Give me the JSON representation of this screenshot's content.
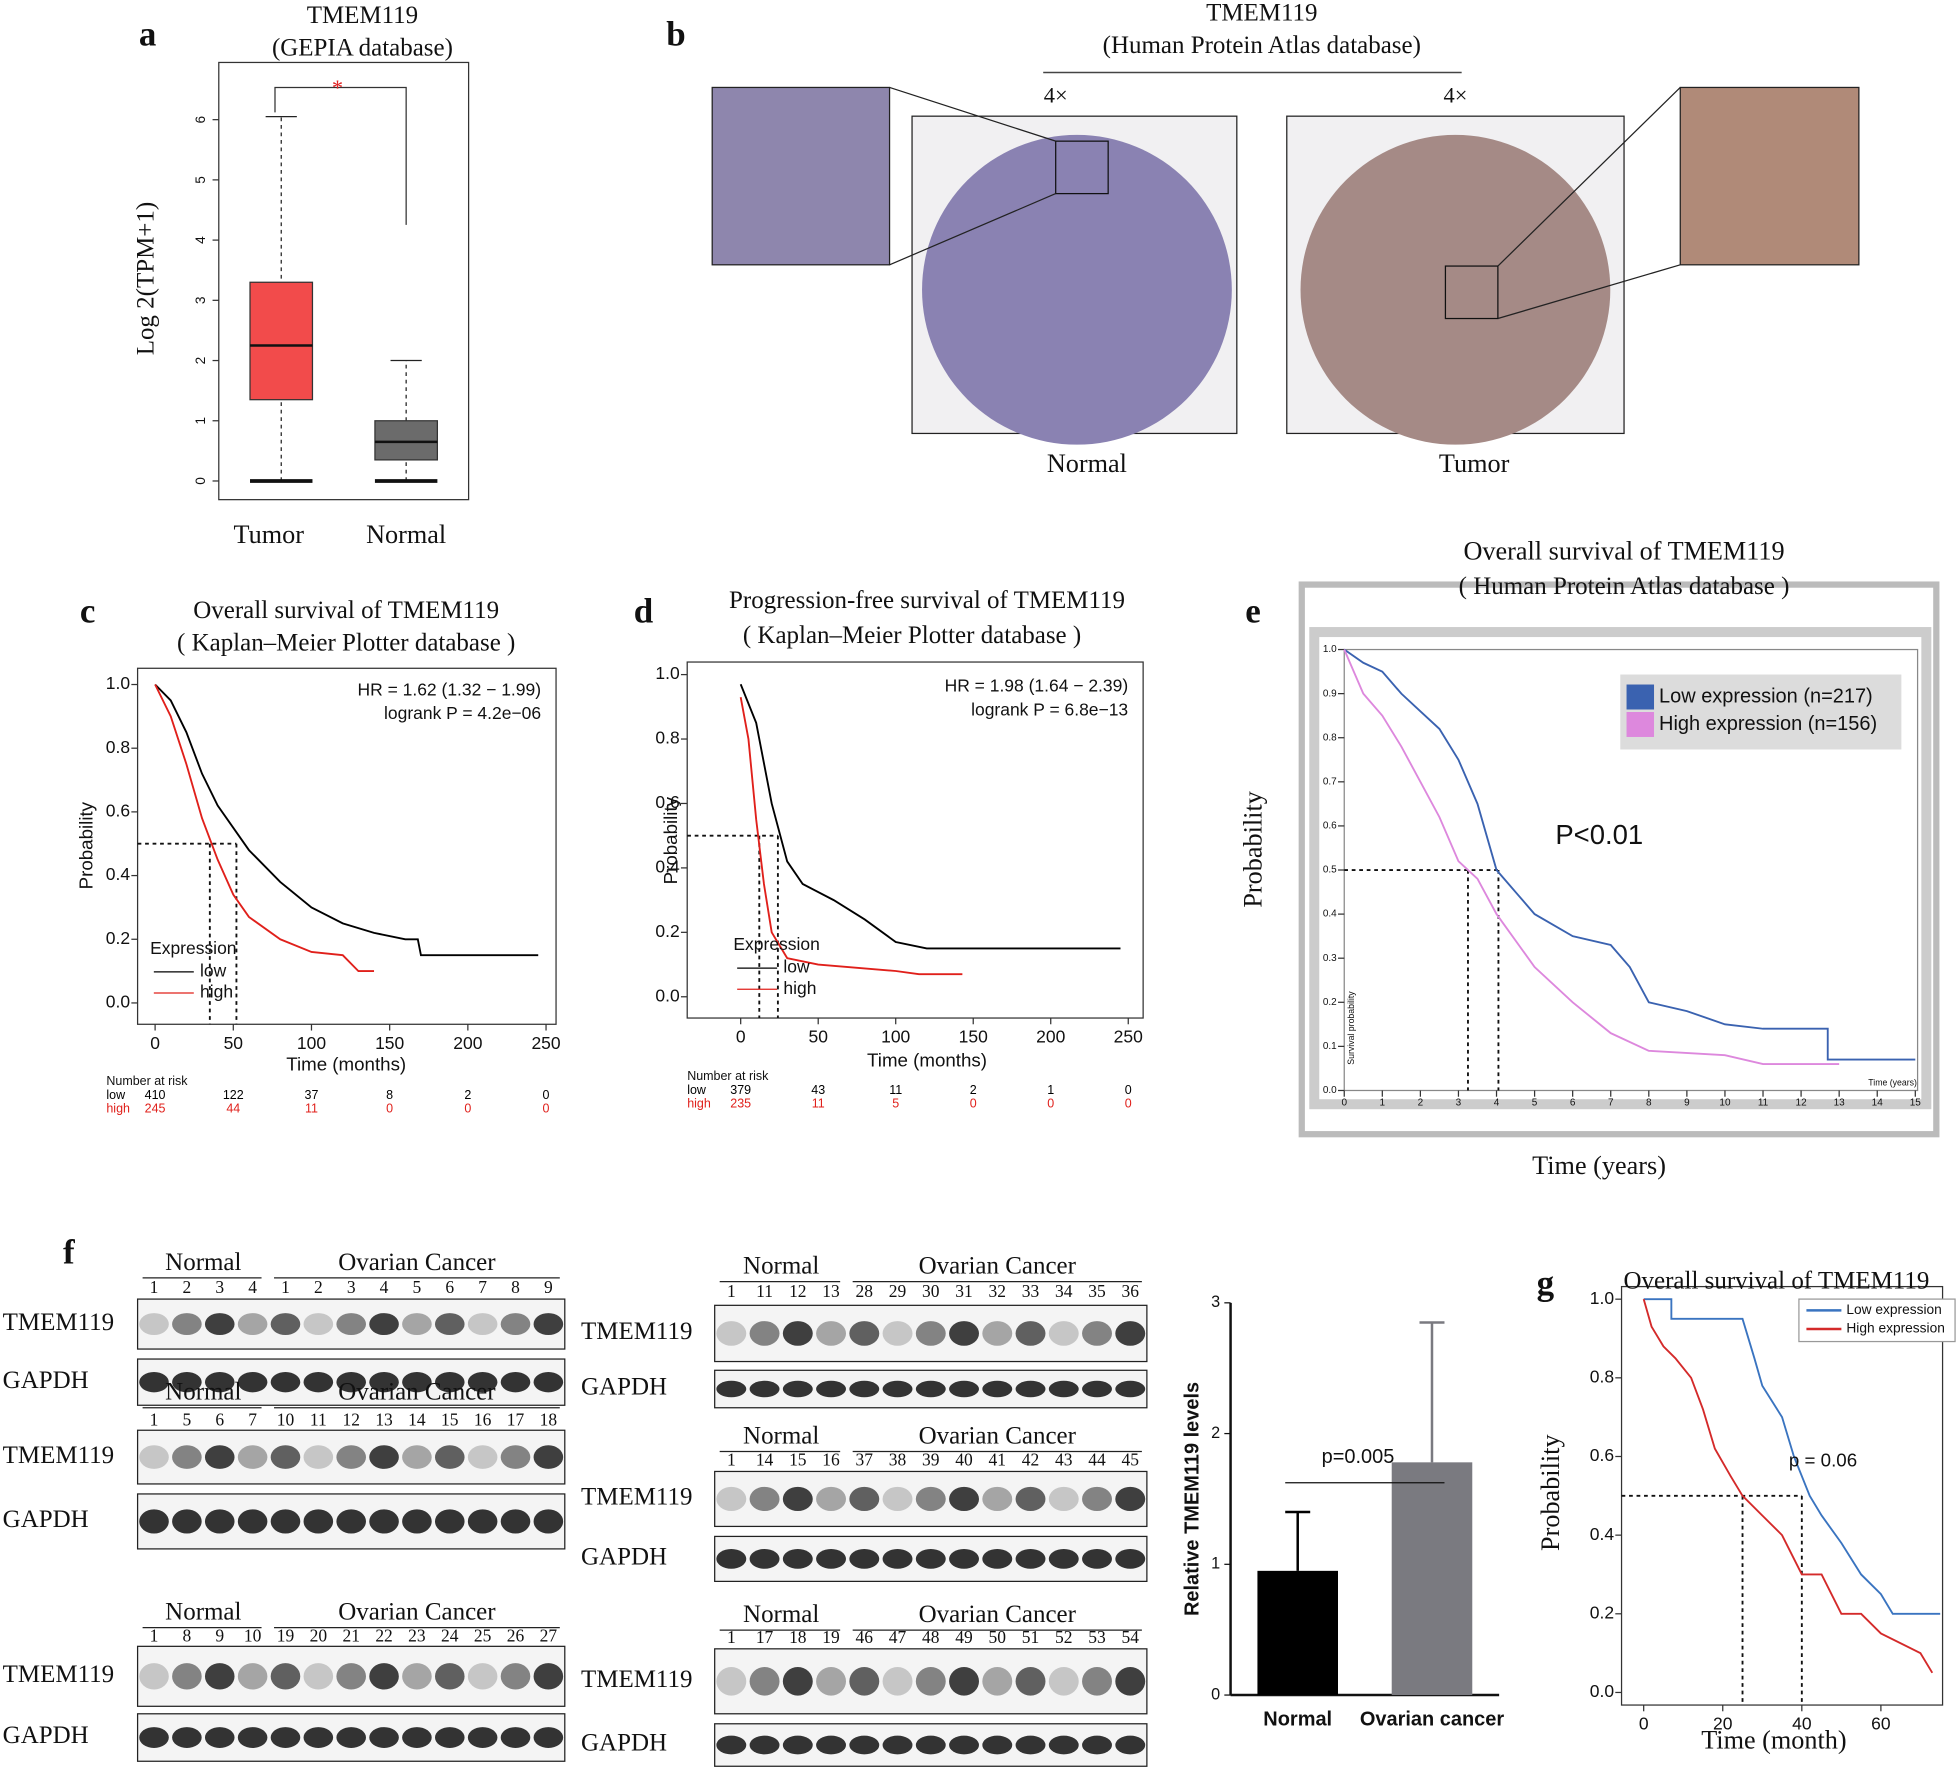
{
  "panel_labels": [
    "a",
    "b",
    "c",
    "d",
    "e",
    "f",
    "g"
  ],
  "chart_data": [
    {
      "type": "box",
      "title": "TMEM119",
      "subtitle": "(GEPIA database)",
      "ylabel": "Log 2(TPM+1)",
      "categories": [
        "Tumor",
        "Normal"
      ],
      "colors": [
        "#f24b4b",
        "#6b6b6b"
      ],
      "whisker_low": [
        0,
        0
      ],
      "q1": [
        1.35,
        0.35
      ],
      "median": [
        2.25,
        0.65
      ],
      "q3": [
        3.3,
        1.0
      ],
      "whisker_high": [
        6.05,
        2.0
      ],
      "ylim": [
        -0.31,
        6.95
      ],
      "yticks": [
        0,
        1,
        2,
        3,
        4,
        5,
        6
      ],
      "significance": "*"
    },
    {
      "type": "line",
      "title": "Overall survival of  TMEM119",
      "subtitle": "( Kaplan–Meier Plotter database )",
      "xlabel": "Time (months)",
      "ylabel": "Probability",
      "xlim": [
        -11.2,
        256.4
      ],
      "ylim": [
        -0.067,
        1.051
      ],
      "xticks": [
        0,
        50,
        100,
        150,
        200,
        250
      ],
      "yticks": [
        {
          "value": 0,
          "label": "0.0"
        },
        {
          "value": 0.2,
          "label": "0.2"
        },
        {
          "value": 0.4,
          "label": "0.4"
        },
        {
          "value": 0.6,
          "label": "0.6"
        },
        {
          "value": 0.8,
          "label": "0.8"
        },
        {
          "value": 1,
          "label": "1.0"
        }
      ],
      "legend_title": "Expression",
      "series": [
        {
          "name": "low",
          "color": "#000000",
          "x": [
            0,
            10,
            20,
            30,
            40,
            50,
            60,
            80,
            100,
            120,
            140,
            160,
            168,
            170,
            245
          ],
          "values": [
            1,
            0.95,
            0.85,
            0.72,
            0.62,
            0.55,
            0.48,
            0.38,
            0.3,
            0.25,
            0.22,
            0.2,
            0.2,
            0.15,
            0.15
          ]
        },
        {
          "name": "high",
          "color": "#e0201b",
          "x": [
            0,
            10,
            20,
            30,
            40,
            50,
            60,
            80,
            100,
            120,
            130,
            140
          ],
          "values": [
            1,
            0.9,
            0.75,
            0.58,
            0.45,
            0.34,
            0.27,
            0.2,
            0.16,
            0.15,
            0.1,
            0.1
          ]
        }
      ],
      "median_level": 0.5,
      "medians": [
        35,
        52
      ],
      "annotations": [
        "HR = 1.62 (1.32 − 1.99)",
        "logrank P = 4.2e−06"
      ],
      "risk_table": {
        "title": "Number at risk",
        "rows": [
          {
            "name": "low",
            "values": [
              410,
              122,
              37,
              8,
              2,
              0
            ]
          },
          {
            "name": "high",
            "values": [
              245,
              44,
              11,
              0,
              0,
              0
            ]
          }
        ]
      }
    },
    {
      "type": "line",
      "title": "Progression-free survival of  TMEM119",
      "subtitle": "( Kaplan–Meier Plotter database )",
      "xlabel": "Time (months)",
      "ylabel": "Probability",
      "xlim": [
        -34.5,
        259.6
      ],
      "ylim": [
        -0.066,
        1.039
      ],
      "xticks": [
        0,
        50,
        100,
        150,
        200,
        250
      ],
      "yticks": [
        {
          "value": 0,
          "label": "0.0"
        },
        {
          "value": 0.2,
          "label": "0.2"
        },
        {
          "value": 0.4,
          "label": "0.4"
        },
        {
          "value": 0.6,
          "label": "0.6"
        },
        {
          "value": 0.8,
          "label": "0.8"
        },
        {
          "value": 1,
          "label": "1.0"
        }
      ],
      "legend_title": "Expression",
      "series": [
        {
          "name": "low",
          "color": "#000000",
          "x": [
            0,
            10,
            20,
            30,
            40,
            60,
            80,
            100,
            120,
            245
          ],
          "values": [
            0.97,
            0.85,
            0.6,
            0.42,
            0.35,
            0.3,
            0.24,
            0.17,
            0.15,
            0.15
          ]
        },
        {
          "name": "high",
          "color": "#e0201b",
          "x": [
            0,
            5,
            10,
            15,
            20,
            30,
            50,
            100,
            115,
            143
          ],
          "values": [
            0.93,
            0.8,
            0.55,
            0.35,
            0.2,
            0.12,
            0.1,
            0.08,
            0.07,
            0.07
          ]
        }
      ],
      "median_level": 0.5,
      "medians": [
        12,
        24
      ],
      "annotations": [
        "HR = 1.98 (1.64 − 2.39)",
        "logrank P = 6.8e−13"
      ],
      "risk_table": {
        "title": "Number at risk",
        "rows": [
          {
            "name": "low",
            "values": [
              379,
              43,
              11,
              2,
              1,
              0
            ]
          },
          {
            "name": "high",
            "values": [
              235,
              11,
              5,
              0,
              0,
              0
            ]
          }
        ]
      }
    },
    {
      "type": "line",
      "title": "Overall survival of TMEM119",
      "subtitle": "( Human Protein Atlas database )",
      "xlabel": "Time (years)",
      "ylabel": "Probability",
      "inner_xlabel": "Time (years)",
      "inner_ylabel": "Survival probability",
      "xlim": [
        0,
        15.06
      ],
      "ylim": [
        0,
        1
      ],
      "xticks": [
        0,
        1,
        2,
        3,
        4,
        5,
        6,
        7,
        8,
        9,
        10,
        11,
        12,
        13,
        14,
        15
      ],
      "yticks": [
        {
          "value": 0,
          "label": "0.0"
        },
        {
          "value": 0.1,
          "label": "0.1"
        },
        {
          "value": 0.2,
          "label": "0.2"
        },
        {
          "value": 0.3,
          "label": "0.3"
        },
        {
          "value": 0.4,
          "label": "0.4"
        },
        {
          "value": 0.5,
          "label": "0.5"
        },
        {
          "value": 0.6,
          "label": "0.6"
        },
        {
          "value": 0.7,
          "label": "0.7"
        },
        {
          "value": 0.8,
          "label": "0.8"
        },
        {
          "value": 0.9,
          "label": "0.9"
        },
        {
          "value": 1,
          "label": "1.0"
        }
      ],
      "series": [
        {
          "name": "Low expression (n=217)",
          "color": "#3a62b0",
          "x": [
            0,
            0.5,
            1,
            1.5,
            2,
            2.5,
            3,
            3.5,
            4,
            4.5,
            5,
            6,
            7,
            7.5,
            8,
            9,
            10,
            11,
            12.7,
            12.7,
            15
          ],
          "values": [
            1,
            0.97,
            0.95,
            0.9,
            0.86,
            0.82,
            0.75,
            0.65,
            0.5,
            0.45,
            0.4,
            0.35,
            0.33,
            0.28,
            0.2,
            0.18,
            0.15,
            0.14,
            0.14,
            0.07,
            0.07
          ]
        },
        {
          "name": "High expression (n=156)",
          "color": "#dd88dd",
          "x": [
            0,
            0.5,
            1,
            1.5,
            2,
            2.5,
            3,
            3.5,
            4,
            5,
            6,
            7,
            8,
            10,
            11,
            13
          ],
          "values": [
            1,
            0.9,
            0.85,
            0.78,
            0.7,
            0.62,
            0.52,
            0.48,
            0.4,
            0.28,
            0.2,
            0.13,
            0.09,
            0.08,
            0.06,
            0.06
          ]
        }
      ],
      "median_level": 0.5,
      "medians": [
        3.25,
        4.05
      ],
      "annotations": [
        "P<0.01"
      ]
    },
    {
      "type": "bar",
      "ylabel": "Relative TMEM119 levels",
      "categories": [
        "Normal",
        "Ovarian cancer"
      ],
      "values": [
        0.95,
        1.78
      ],
      "errors": [
        0.45,
        1.07
      ],
      "colors": [
        "#000000",
        "#7a7a80"
      ],
      "ylim": [
        0,
        3
      ],
      "yticks": [
        0,
        1,
        2,
        3
      ],
      "annotations": [
        "p=0.005"
      ]
    },
    {
      "type": "line",
      "title": "Overall survival of TMEM119",
      "xlabel": "Time (month)",
      "ylabel": "Probability",
      "xlim": [
        -5.6,
        75.6
      ],
      "ylim": [
        -0.032,
        1.032
      ],
      "xticks": [
        0,
        20,
        40,
        60
      ],
      "yticks": [
        {
          "value": 0,
          "label": "0.0"
        },
        {
          "value": 0.2,
          "label": "0.2"
        },
        {
          "value": 0.4,
          "label": "0.4"
        },
        {
          "value": 0.6,
          "label": "0.6"
        },
        {
          "value": 0.8,
          "label": "0.8"
        },
        {
          "value": 1,
          "label": "1.0"
        }
      ],
      "series": [
        {
          "name": "Low expression",
          "color": "#3a74c0",
          "x": [
            0,
            7,
            7,
            25,
            28,
            30,
            35,
            38,
            42,
            45,
            50,
            55,
            60,
            63,
            70,
            75
          ],
          "values": [
            1,
            1,
            0.95,
            0.95,
            0.85,
            0.78,
            0.7,
            0.6,
            0.5,
            0.45,
            0.38,
            0.3,
            0.25,
            0.2,
            0.2,
            0.2
          ]
        },
        {
          "name": "High expression",
          "color": "#d42a2a",
          "x": [
            0,
            2,
            5,
            8,
            12,
            15,
            18,
            22,
            25,
            30,
            35,
            40,
            45,
            50,
            55,
            60,
            70,
            73
          ],
          "values": [
            1,
            0.93,
            0.88,
            0.85,
            0.8,
            0.72,
            0.62,
            0.55,
            0.5,
            0.45,
            0.4,
            0.3,
            0.3,
            0.2,
            0.2,
            0.15,
            0.1,
            0.05
          ]
        }
      ],
      "median_level": 0.5,
      "medians": [
        25,
        40
      ],
      "annotations": [
        "p = 0.06"
      ]
    }
  ],
  "panel_b": {
    "title": "TMEM119",
    "subtitle": "(Human Protein Atlas database)",
    "magnifications": [
      "4×",
      "4×"
    ],
    "labels": [
      "Normal",
      "Tumor"
    ]
  },
  "panel_f": {
    "blots": [
      {
        "normal_label": "Normal",
        "cancer_label": "Ovarian Cancer",
        "normal_lanes": [
          1,
          2,
          3,
          4
        ],
        "cancer_lanes": [
          1,
          2,
          3,
          4,
          5,
          6,
          7,
          8,
          9
        ],
        "proteins": [
          "TMEM119",
          "GAPDH"
        ]
      },
      {
        "normal_label": "Normal",
        "cancer_label": "Ovarian Cancer",
        "normal_lanes": [
          1,
          5,
          6,
          7
        ],
        "cancer_lanes": [
          10,
          11,
          12,
          13,
          14,
          15,
          16,
          17,
          18
        ],
        "proteins": [
          "TMEM119",
          "GAPDH"
        ]
      },
      {
        "normal_label": "Normal",
        "cancer_label": "Ovarian Cancer",
        "normal_lanes": [
          1,
          8,
          9,
          10
        ],
        "cancer_lanes": [
          19,
          20,
          21,
          22,
          23,
          24,
          25,
          26,
          27
        ],
        "proteins": [
          "TMEM119",
          "GAPDH"
        ]
      },
      {
        "normal_label": "Normal",
        "cancer_label": "Ovarian Cancer",
        "normal_lanes": [
          1,
          11,
          12,
          13
        ],
        "cancer_lanes": [
          28,
          29,
          30,
          31,
          32,
          33,
          34,
          35,
          36
        ],
        "proteins": [
          "TMEM119",
          "GAPDH"
        ]
      },
      {
        "normal_label": "Normal",
        "cancer_label": "Ovarian Cancer",
        "normal_lanes": [
          1,
          14,
          15,
          16
        ],
        "cancer_lanes": [
          37,
          38,
          39,
          40,
          41,
          42,
          43,
          44,
          45
        ],
        "proteins": [
          "TMEM119",
          "GAPDH"
        ]
      },
      {
        "normal_label": "Normal",
        "cancer_label": "Ovarian Cancer",
        "normal_lanes": [
          1,
          17,
          18,
          19
        ],
        "cancer_lanes": [
          46,
          47,
          48,
          49,
          50,
          51,
          52,
          53,
          54
        ],
        "proteins": [
          "TMEM119",
          "GAPDH"
        ]
      }
    ]
  }
}
